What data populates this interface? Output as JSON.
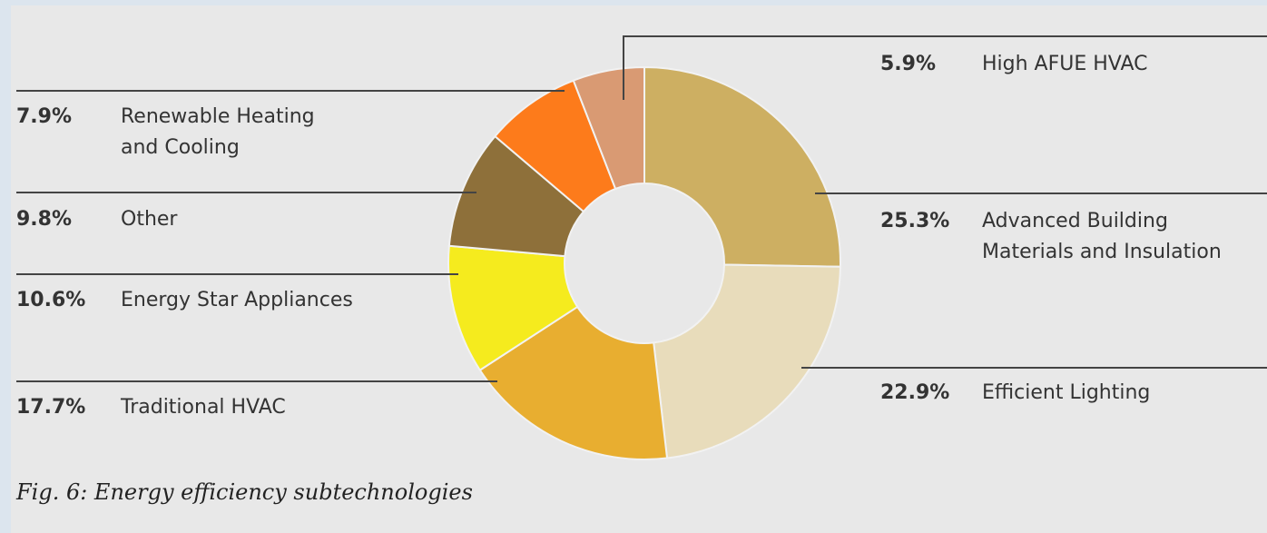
{
  "chart_data": {
    "type": "donut",
    "title": "Fig. 6: Energy efficiency subtechnologies",
    "categories": [
      "Advanced Building\nMaterials and Insulation",
      "Efficient Lighting",
      "Traditional HVAC",
      "Energy Star Appliances",
      "Other",
      "Renewable Heating\nand Cooling",
      "High AFUE HVAC"
    ],
    "values": [
      25.3,
      22.9,
      17.7,
      10.6,
      9.8,
      7.9,
      5.9
    ],
    "value_labels": [
      "25.3%",
      "22.9%",
      "17.7%",
      "10.6%",
      "9.8%",
      "7.9%",
      "5.9%"
    ],
    "colors": [
      "#cdaf62",
      "#e8dcbb",
      "#e8ae30",
      "#f5eb1e",
      "#8e703a",
      "#fd7b1b",
      "#d99a73"
    ]
  }
}
